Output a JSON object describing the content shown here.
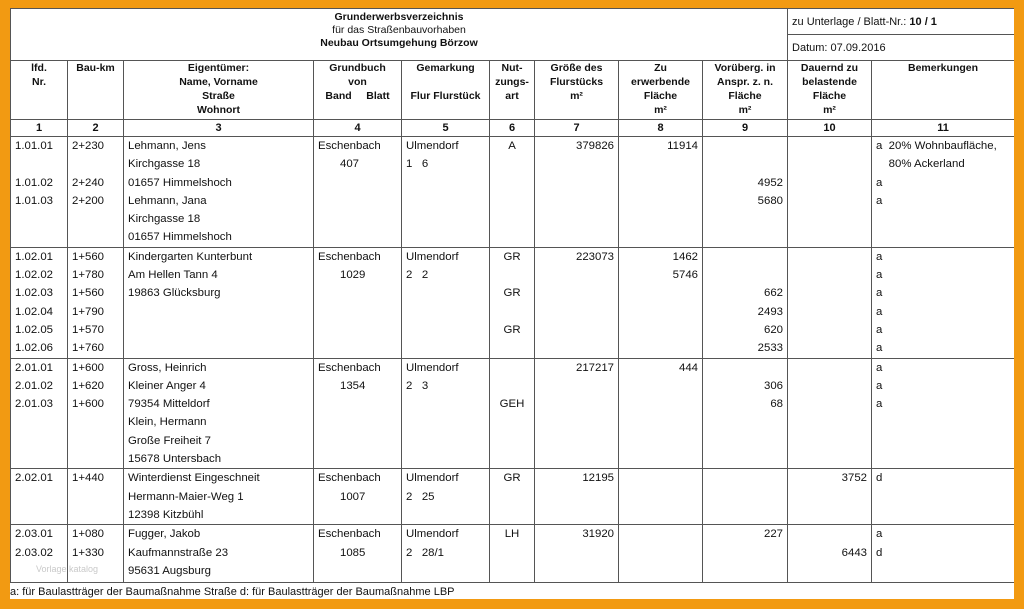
{
  "header": {
    "title_line1": "Grunderwerbsverzeichnis",
    "title_line2": "für das Straßenbauvorhaben",
    "title_line3": "Neubau Ortsumgehung Börzow",
    "unterlage_label": "zu Unterlage / Blatt-Nr.:",
    "unterlage_value": "10 / 1",
    "datum": "Datum: 07.09.2016"
  },
  "columns": {
    "c1": [
      "lfd.",
      "Nr."
    ],
    "c2": [
      "Bau-km"
    ],
    "c3": [
      "Eigentümer:",
      "Name, Vorname",
      "Straße",
      "Wohnort"
    ],
    "c4": [
      "Grundbuch",
      "von",
      "Band     Blatt"
    ],
    "c5": [
      "Gemarkung",
      "Flur Flurstück"
    ],
    "c6": [
      "Nut-",
      "zungs-",
      "art"
    ],
    "c7": [
      "Größe des",
      "Flurstücks",
      "m²"
    ],
    "c8": [
      "Zu",
      "erwerbende",
      "Fläche",
      "m²"
    ],
    "c9": [
      "Vorüberg. in",
      "Anspr. z. n.",
      "Fläche",
      "m²"
    ],
    "c10": [
      "Dauernd zu",
      "belastende",
      "Fläche",
      "m²"
    ],
    "c11": [
      "Bemerkungen"
    ],
    "numbers": [
      "1",
      "2",
      "3",
      "4",
      "5",
      "6",
      "7",
      "8",
      "9",
      "10",
      "11"
    ]
  },
  "blocks": [
    {
      "nr": [
        "1.01.01",
        "",
        "1.01.02",
        "1.01.03"
      ],
      "km": [
        "2+230",
        "",
        "2+240",
        "2+200"
      ],
      "owner": [
        "Lehmann, Jens",
        "Kirchgasse 18",
        "01657 Himmelshoch",
        "Lehmann, Jana",
        "Kirchgasse 18",
        "01657 Himmelshoch"
      ],
      "grundbuch": [
        "Eschenbach",
        "407"
      ],
      "gemarkung": [
        "Ulmendorf",
        "1   6"
      ],
      "nutzung": [
        "A"
      ],
      "groesse": [
        "379826"
      ],
      "erwerb": [
        "11914"
      ],
      "voruebergehend": [
        "",
        "",
        "4952",
        "5680"
      ],
      "dauernd": [],
      "bemerkung": [
        "a  20% Wohnbaufläche,",
        "    80% Ackerland",
        "a",
        "a"
      ]
    },
    {
      "nr": [
        "1.02.01",
        "1.02.02",
        "1.02.03",
        "1.02.04",
        "1.02.05",
        "1.02.06"
      ],
      "km": [
        "1+560",
        "1+780",
        "1+560",
        "1+790",
        "1+570",
        "1+760"
      ],
      "owner": [
        "Kindergarten Kunterbunt",
        "Am Hellen Tann 4",
        "19863 Glücksburg"
      ],
      "grundbuch": [
        "Eschenbach",
        "1029"
      ],
      "gemarkung": [
        "Ulmendorf",
        "2   2"
      ],
      "nutzung": [
        "GR",
        "",
        "GR",
        "",
        "GR"
      ],
      "groesse": [
        "223073"
      ],
      "erwerb": [
        "1462",
        "5746"
      ],
      "voruebergehend": [
        "",
        "",
        "662",
        "2493",
        "620",
        "2533"
      ],
      "dauernd": [],
      "bemerkung": [
        "a",
        "a",
        "a",
        "a",
        "a",
        "a"
      ]
    },
    {
      "nr": [
        "2.01.01",
        "2.01.02",
        "2.01.03"
      ],
      "km": [
        "1+600",
        "1+620",
        "1+600"
      ],
      "owner": [
        "Gross, Heinrich",
        "Kleiner Anger 4",
        "79354 Mitteldorf",
        "Klein, Hermann",
        "Große Freiheit 7",
        "15678 Untersbach"
      ],
      "grundbuch": [
        "Eschenbach",
        "1354"
      ],
      "gemarkung": [
        "Ulmendorf",
        "2   3"
      ],
      "nutzung": [
        "",
        "",
        "GEH"
      ],
      "groesse": [
        "217217"
      ],
      "erwerb": [
        "444"
      ],
      "voruebergehend": [
        "",
        "306",
        "68"
      ],
      "dauernd": [],
      "bemerkung": [
        "a",
        "a",
        "a"
      ]
    },
    {
      "nr": [
        "2.02.01"
      ],
      "km": [
        "1+440"
      ],
      "owner": [
        "Winterdienst Eingeschneit",
        "Hermann-Maier-Weg 1",
        "12398 Kitzbühl"
      ],
      "grundbuch": [
        "Eschenbach",
        "1007"
      ],
      "gemarkung": [
        "Ulmendorf",
        "2   25"
      ],
      "nutzung": [
        "GR"
      ],
      "groesse": [
        "12195"
      ],
      "erwerb": [],
      "voruebergehend": [],
      "dauernd": [
        "3752"
      ],
      "bemerkung": [
        "d"
      ]
    },
    {
      "nr": [
        "2.03.01",
        "2.03.02"
      ],
      "km": [
        "1+080",
        "1+330"
      ],
      "owner": [
        "Fugger, Jakob",
        "Kaufmannstraße 23",
        "95631 Augsburg"
      ],
      "grundbuch": [
        "Eschenbach",
        "1085"
      ],
      "gemarkung": [
        "Ulmendorf",
        "2   28/1"
      ],
      "nutzung": [
        "LH"
      ],
      "groesse": [
        "31920"
      ],
      "erwerb": [],
      "voruebergehend": [
        "227"
      ],
      "dauernd": [
        "",
        "6443"
      ],
      "bemerkung": [
        "a",
        "d"
      ]
    }
  ],
  "watermark": "Vorlage katalog",
  "footnote": "a: für Baulastträger der Baumaßnahme Straße   d: für Baulastträger der Baumaßnahme LBP"
}
